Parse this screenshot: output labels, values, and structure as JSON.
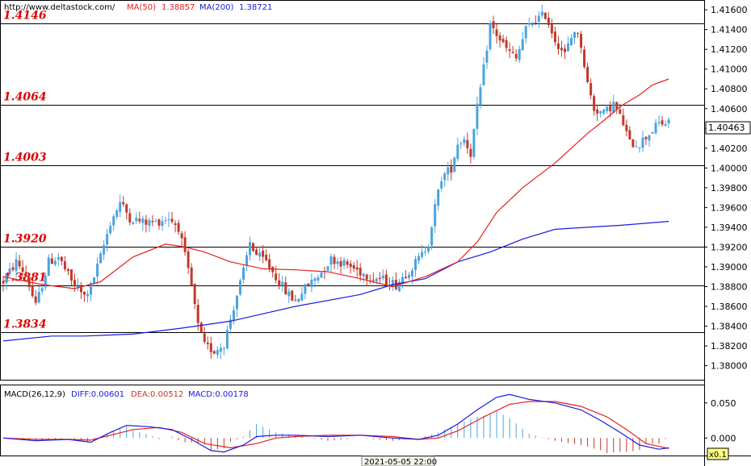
{
  "header": {
    "source": "http://www.deltastock.com/",
    "ma50_label": "MA(50)",
    "ma50_value": "1.38857",
    "ma200_label": "MA(200)",
    "ma200_value": "1.38721"
  },
  "colors": {
    "bull": "#4aa3df",
    "bear": "#c0392b",
    "ma50": "#e81e1e",
    "ma200": "#1a1ae0",
    "level_text": "#e00000"
  },
  "chart_data": [
    {
      "type": "candlestick",
      "ylim": [
        1.3785,
        1.4165
      ],
      "yticks": [
        "1.41600",
        "1.41400",
        "1.41200",
        "1.41000",
        "1.40800",
        "1.40600",
        "1.40400",
        "1.40200",
        "1.40000",
        "1.39800",
        "1.39600",
        "1.39400",
        "1.39200",
        "1.39000",
        "1.38800",
        "1.38600",
        "1.38400",
        "1.38200",
        "1.38000"
      ],
      "current_price": "1.40463",
      "levels": [
        {
          "value": 1.4146,
          "label": "1.4146"
        },
        {
          "value": 1.4064,
          "label": "1.4064"
        },
        {
          "value": 1.4003,
          "label": "1.4003"
        },
        {
          "value": 1.392,
          "label": "1.3920"
        },
        {
          "value": 1.3881,
          "label": "1.3881"
        },
        {
          "value": 1.3834,
          "label": "1.3834"
        }
      ],
      "price_path": [
        [
          0,
          1.3885
        ],
        [
          4,
          1.3905
        ],
        [
          7,
          1.3892
        ],
        [
          10,
          1.386
        ],
        [
          14,
          1.3905
        ],
        [
          17,
          1.391
        ],
        [
          21,
          1.3885
        ],
        [
          25,
          1.387
        ],
        [
          27,
          1.388
        ],
        [
          30,
          1.391
        ],
        [
          33,
          1.3945
        ],
        [
          36,
          1.3965
        ],
        [
          39,
          1.395
        ],
        [
          43,
          1.3945
        ],
        [
          47,
          1.3945
        ],
        [
          51,
          1.395
        ],
        [
          54,
          1.394
        ],
        [
          56,
          1.391
        ],
        [
          58,
          1.388
        ],
        [
          60,
          1.384
        ],
        [
          62,
          1.382
        ],
        [
          65,
          1.3815
        ],
        [
          68,
          1.3822
        ],
        [
          71,
          1.386
        ],
        [
          74,
          1.3895
        ],
        [
          76,
          1.3925
        ],
        [
          78,
          1.3912
        ],
        [
          81,
          1.3905
        ],
        [
          84,
          1.389
        ],
        [
          87,
          1.3875
        ],
        [
          90,
          1.3865
        ],
        [
          92,
          1.3875
        ],
        [
          95,
          1.3885
        ],
        [
          98,
          1.3895
        ],
        [
          101,
          1.3908
        ],
        [
          104,
          1.3905
        ],
        [
          107,
          1.39
        ],
        [
          110,
          1.3895
        ],
        [
          113,
          1.389
        ],
        [
          116,
          1.3888
        ],
        [
          119,
          1.3885
        ],
        [
          121,
          1.3882
        ],
        [
          123,
          1.389
        ],
        [
          126,
          1.39
        ],
        [
          129,
          1.3912
        ],
        [
          131,
          1.3925
        ],
        [
          133,
          1.396
        ],
        [
          135,
          1.399
        ],
        [
          138,
          1.4
        ],
        [
          140,
          1.4025
        ],
        [
          142,
          1.403
        ],
        [
          144,
          1.4015
        ],
        [
          146,
          1.406
        ],
        [
          148,
          1.41
        ],
        [
          150,
          1.4145
        ],
        [
          152,
          1.4135
        ],
        [
          155,
          1.412
        ],
        [
          158,
          1.411
        ],
        [
          161,
          1.414
        ],
        [
          164,
          1.415
        ],
        [
          167,
          1.4155
        ],
        [
          170,
          1.413
        ],
        [
          173,
          1.4115
        ],
        [
          176,
          1.414
        ],
        [
          178,
          1.4125
        ],
        [
          180,
          1.4085
        ],
        [
          182,
          1.406
        ],
        [
          185,
          1.4055
        ],
        [
          188,
          1.4065
        ],
        [
          191,
          1.4045
        ],
        [
          193,
          1.4025
        ],
        [
          196,
          1.4025
        ],
        [
          199,
          1.4035
        ],
        [
          202,
          1.4045
        ],
        [
          205,
          1.4045
        ]
      ],
      "candle_count": 206,
      "ma50_path": [
        [
          0,
          1.389
        ],
        [
          12,
          1.3882
        ],
        [
          22,
          1.3878
        ],
        [
          30,
          1.3885
        ],
        [
          40,
          1.391
        ],
        [
          50,
          1.3923
        ],
        [
          56,
          1.392
        ],
        [
          62,
          1.3915
        ],
        [
          70,
          1.3905
        ],
        [
          80,
          1.3898
        ],
        [
          90,
          1.3897
        ],
        [
          100,
          1.3895
        ],
        [
          110,
          1.3888
        ],
        [
          120,
          1.388
        ],
        [
          130,
          1.389
        ],
        [
          140,
          1.3905
        ],
        [
          146,
          1.3925
        ],
        [
          152,
          1.3955
        ],
        [
          160,
          1.398
        ],
        [
          170,
          1.4005
        ],
        [
          180,
          1.4035
        ],
        [
          185,
          1.4048
        ],
        [
          190,
          1.4062
        ],
        [
          196,
          1.4074
        ],
        [
          200,
          1.4084
        ],
        [
          205,
          1.409
        ]
      ],
      "ma200_path": [
        [
          0,
          1.3825
        ],
        [
          15,
          1.383
        ],
        [
          25,
          1.383
        ],
        [
          40,
          1.3832
        ],
        [
          55,
          1.3838
        ],
        [
          70,
          1.3845
        ],
        [
          90,
          1.386
        ],
        [
          110,
          1.3872
        ],
        [
          120,
          1.3882
        ],
        [
          130,
          1.3888
        ],
        [
          140,
          1.3905
        ],
        [
          150,
          1.3915
        ],
        [
          160,
          1.3928
        ],
        [
          170,
          1.3938
        ],
        [
          180,
          1.394
        ],
        [
          190,
          1.3942
        ],
        [
          205,
          1.3946
        ]
      ]
    },
    {
      "type": "macd",
      "label": "MACD(26,12,9)",
      "diff_label": "DIFF:0.00601",
      "dea_label": "DEA:0.00512",
      "macd_label": "MACD:0.00178",
      "ylim": [
        -0.025,
        0.075
      ],
      "yticks": [
        "0.050",
        "0.000"
      ],
      "date_label": "2021-05-05 22:00",
      "zoom_label": "x0.1",
      "diff_path": [
        [
          0,
          0.0
        ],
        [
          10,
          -0.004
        ],
        [
          20,
          -0.002
        ],
        [
          27,
          -0.006
        ],
        [
          33,
          0.008
        ],
        [
          38,
          0.018
        ],
        [
          45,
          0.016
        ],
        [
          52,
          0.012
        ],
        [
          58,
          -0.002
        ],
        [
          64,
          -0.018
        ],
        [
          68,
          -0.02
        ],
        [
          74,
          -0.01
        ],
        [
          78,
          0.002
        ],
        [
          84,
          0.004
        ],
        [
          90,
          0.004
        ],
        [
          100,
          0.002
        ],
        [
          110,
          0.004
        ],
        [
          120,
          0.0
        ],
        [
          128,
          -0.002
        ],
        [
          134,
          0.004
        ],
        [
          140,
          0.02
        ],
        [
          146,
          0.04
        ],
        [
          152,
          0.058
        ],
        [
          156,
          0.062
        ],
        [
          162,
          0.055
        ],
        [
          170,
          0.05
        ],
        [
          178,
          0.04
        ],
        [
          184,
          0.025
        ],
        [
          190,
          0.008
        ],
        [
          196,
          -0.01
        ],
        [
          202,
          -0.016
        ],
        [
          205,
          -0.014
        ]
      ],
      "dea_path": [
        [
          0,
          0.0
        ],
        [
          10,
          -0.002
        ],
        [
          20,
          -0.002
        ],
        [
          27,
          -0.003
        ],
        [
          33,
          0.004
        ],
        [
          40,
          0.012
        ],
        [
          48,
          0.015
        ],
        [
          55,
          0.008
        ],
        [
          62,
          -0.008
        ],
        [
          70,
          -0.014
        ],
        [
          78,
          -0.008
        ],
        [
          84,
          0.0
        ],
        [
          90,
          0.002
        ],
        [
          100,
          0.004
        ],
        [
          110,
          0.004
        ],
        [
          120,
          0.002
        ],
        [
          128,
          -0.002
        ],
        [
          134,
          0.0
        ],
        [
          140,
          0.01
        ],
        [
          148,
          0.03
        ],
        [
          156,
          0.048
        ],
        [
          162,
          0.052
        ],
        [
          170,
          0.052
        ],
        [
          178,
          0.045
        ],
        [
          186,
          0.03
        ],
        [
          192,
          0.012
        ],
        [
          198,
          -0.008
        ],
        [
          205,
          -0.015
        ]
      ]
    }
  ]
}
